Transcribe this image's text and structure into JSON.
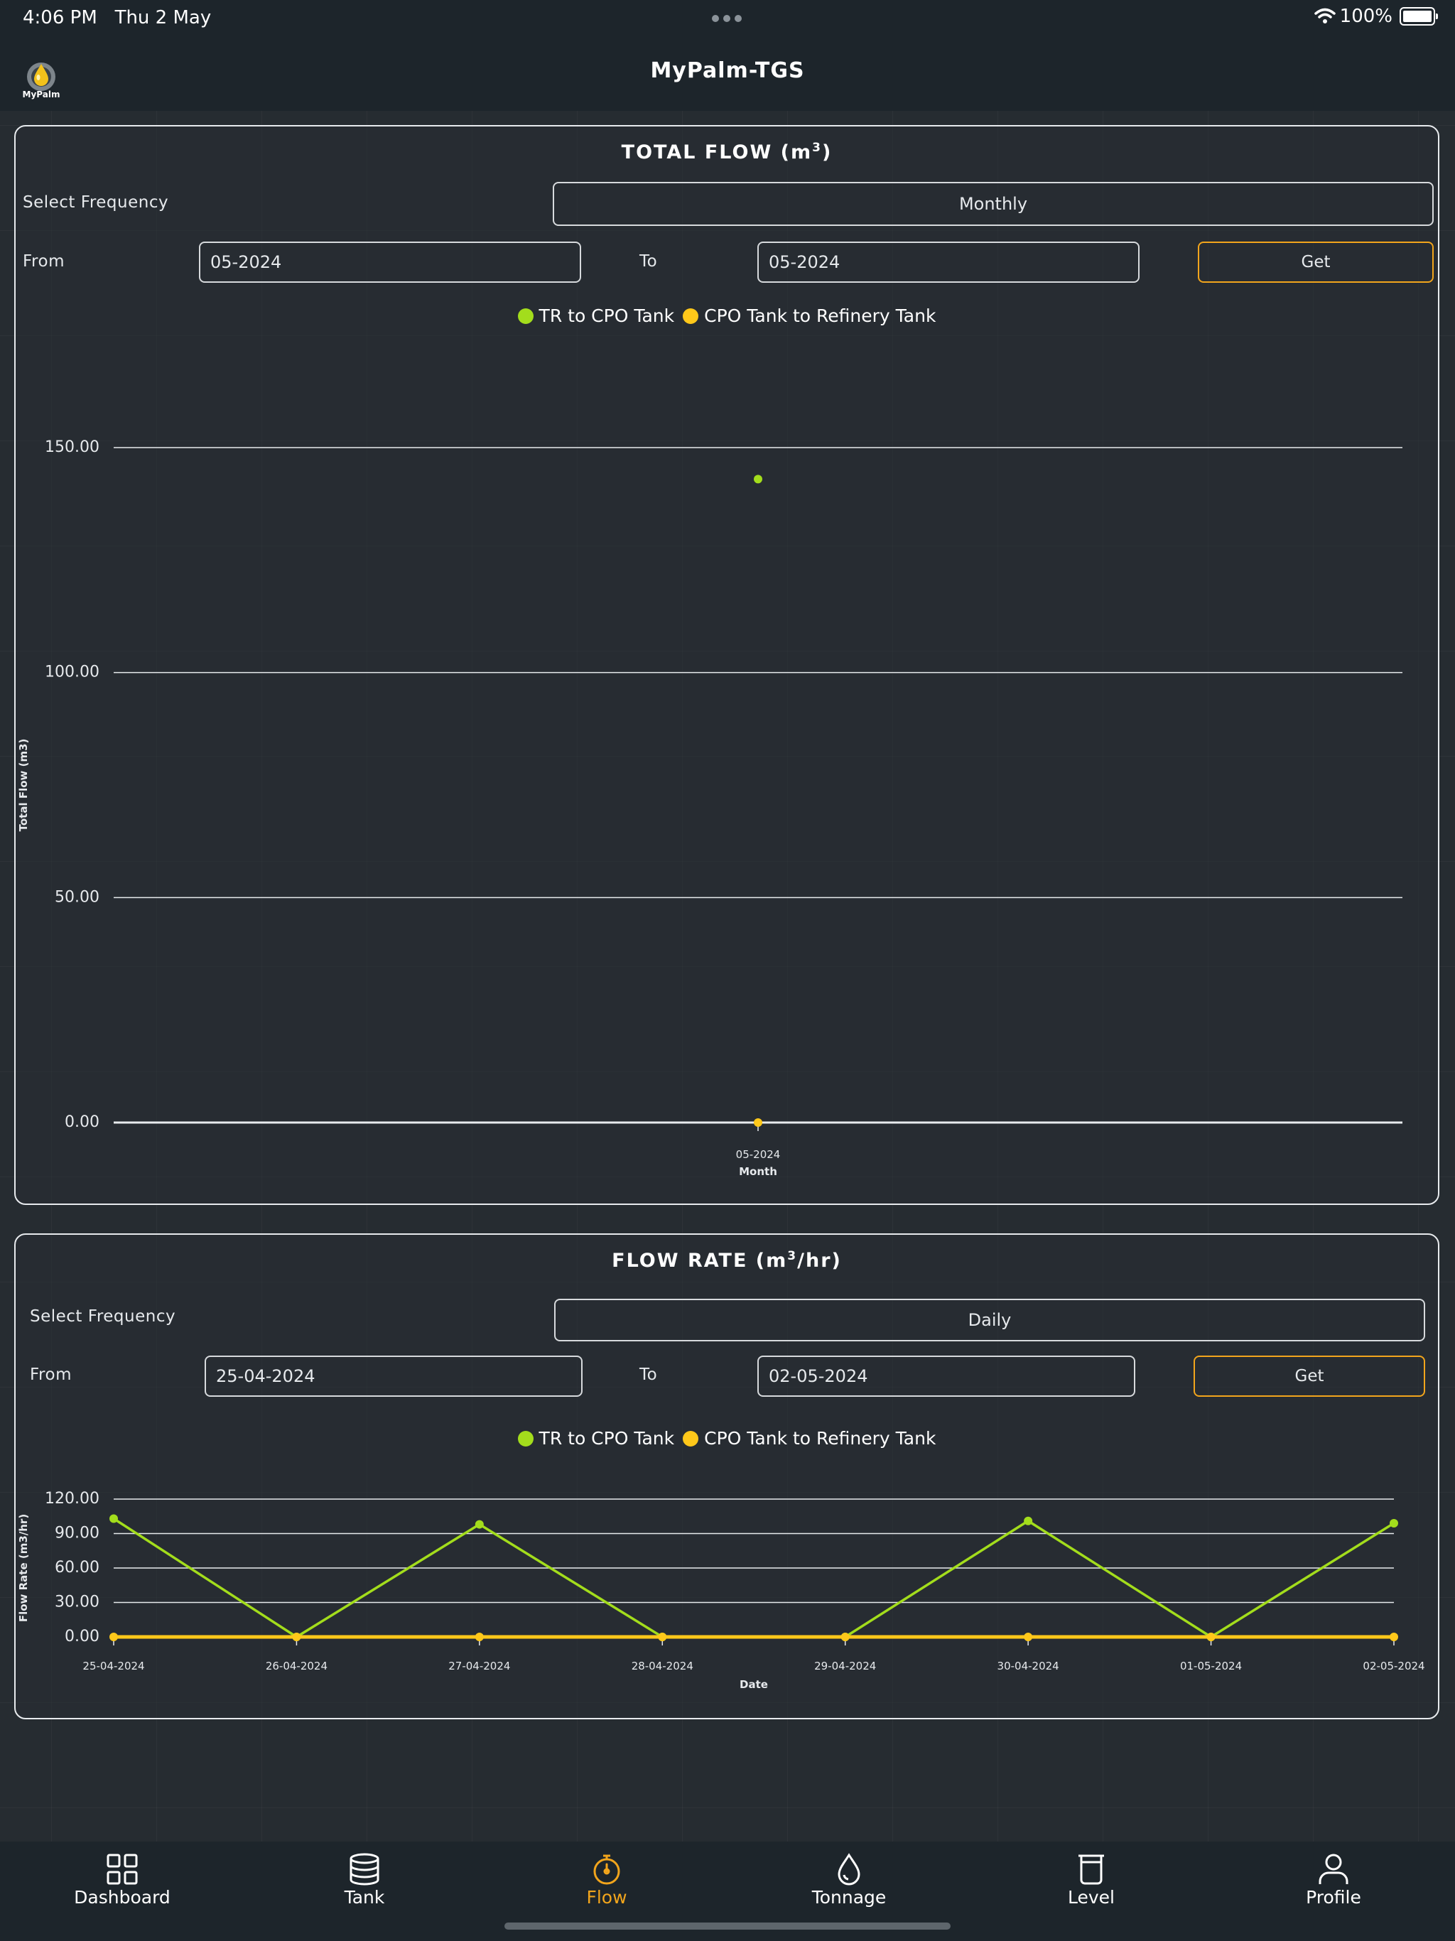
{
  "status_bar": {
    "time": "4:06 PM",
    "date": "Thu 2 May",
    "battery": "100%"
  },
  "header": {
    "title": "MyPalm-TGS",
    "logo_text": "MyPalm"
  },
  "total_flow": {
    "title": "TOTAL FLOW (m",
    "title_sup": "3",
    "title_end": ")",
    "frequency_label": "Select Frequency",
    "frequency_value": "Monthly",
    "from_label": "From",
    "from_value": "05-2024",
    "to_label": "To",
    "to_value": "05-2024",
    "get_label": "Get",
    "legend": [
      {
        "name": "TR to CPO Tank",
        "color": "#a3dd1c"
      },
      {
        "name": "CPO Tank to Refinery Tank",
        "color": "#ffc81a"
      }
    ]
  },
  "flow_rate": {
    "title": "FLOW RATE (m",
    "title_sup": "3",
    "title_end": "/hr)",
    "frequency_label": "Select Frequency",
    "frequency_value": "Daily",
    "from_label": "From",
    "from_value": "25-04-2024",
    "to_label": "To",
    "to_value": "02-05-2024",
    "get_label": "Get",
    "legend": [
      {
        "name": "TR to CPO Tank",
        "color": "#a3dd1c"
      },
      {
        "name": "CPO Tank to Refinery Tank",
        "color": "#ffc81a"
      }
    ]
  },
  "chart_data": [
    {
      "type": "scatter",
      "title": "",
      "xlabel": "Month",
      "ylabel": "Total Flow (m3)",
      "categories": [
        "05-2024"
      ],
      "ylim": [
        0,
        150
      ],
      "yticks": [
        "0.00",
        "50.00",
        "100.00",
        "150.00"
      ],
      "series": [
        {
          "name": "TR to CPO Tank",
          "values": [
            143
          ],
          "color": "#a3dd1c"
        },
        {
          "name": "CPO Tank to Refinery Tank",
          "values": [
            0
          ],
          "color": "#ffc81a"
        }
      ]
    },
    {
      "type": "line",
      "title": "",
      "xlabel": "Date",
      "ylabel": "Flow Rate (m3/hr)",
      "categories": [
        "25-04-2024",
        "26-04-2024",
        "27-04-2024",
        "28-04-2024",
        "29-04-2024",
        "30-04-2024",
        "01-05-2024",
        "02-05-2024"
      ],
      "ylim": [
        0,
        120
      ],
      "yticks": [
        "0.00",
        "30.00",
        "60.00",
        "90.00",
        "120.00"
      ],
      "series": [
        {
          "name": "TR to CPO Tank",
          "values": [
            103,
            0,
            98,
            0,
            0,
            101,
            0,
            99
          ],
          "color": "#a3dd1c"
        },
        {
          "name": "CPO Tank to Refinery Tank",
          "values": [
            0,
            0,
            0,
            0,
            0,
            0,
            0,
            0
          ],
          "color": "#ffc81a"
        }
      ]
    }
  ],
  "tabs": [
    {
      "label": "Dashboard",
      "icon": "grid-icon",
      "active": false
    },
    {
      "label": "Tank",
      "icon": "database-icon",
      "active": false
    },
    {
      "label": "Flow",
      "icon": "stopwatch-icon",
      "active": true
    },
    {
      "label": "Tonnage",
      "icon": "droplet-icon",
      "active": false
    },
    {
      "label": "Level",
      "icon": "beaker-icon",
      "active": false
    },
    {
      "label": "Profile",
      "icon": "user-icon",
      "active": false
    }
  ]
}
